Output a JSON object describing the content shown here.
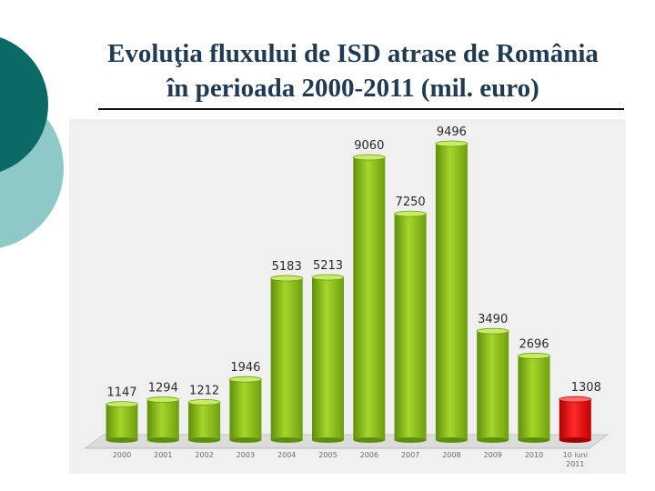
{
  "slide": {
    "title_line1": "Evoluţia fluxului de ISD atrase de România",
    "title_line2": "în perioada 2000-2011 (mil. euro)"
  },
  "colors": {
    "bar_green": "#8cc31a",
    "bar_red": "#e81010",
    "deco_dark": "#0b6a66",
    "deco_light": "#8ec9c7",
    "title_text": "#1f3a52"
  },
  "chart_data": {
    "type": "bar",
    "categories": [
      "2000",
      "2001",
      "2002",
      "2003",
      "2004",
      "2005",
      "2006",
      "2007",
      "2008",
      "2009",
      "2010",
      "10 iuni 2011"
    ],
    "values": [
      1147,
      1294,
      1212,
      1946,
      5183,
      5213,
      9060,
      7250,
      9496,
      3490,
      2696,
      1308
    ],
    "data_labels": [
      "1147",
      "1294",
      "1212",
      "1946",
      "5183",
      "5213",
      "9060",
      "7250",
      "9496",
      "3490",
      "2696",
      "1308"
    ],
    "highlight_index": 11,
    "title": "",
    "xlabel": "",
    "ylabel": "",
    "ylim": [
      0,
      9496
    ],
    "grid": false,
    "legend": "none"
  }
}
